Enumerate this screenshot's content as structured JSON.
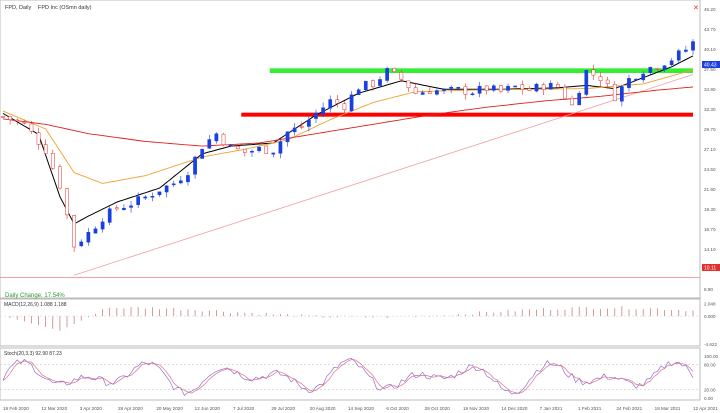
{
  "header": {
    "symbol_title": "FPD, Daily",
    "symbol_desc": "FPD Inc (OSmn daily)"
  },
  "panels": {
    "daily_change_label": "Daily Change: 17.54%",
    "macd_label": "MACD(12,26,9) 1.088 1.188",
    "stoch_label": "Stoch(20,3,3) 92.90 87.23",
    "last_price": "40.43",
    "horizontal_level": "10.11"
  },
  "colors": {
    "up": "#1a3fe0",
    "down": "#e03030",
    "ma_black": "#000000",
    "ma_orange": "#f0a030",
    "ma_red": "#e02020",
    "resistance_band": "#33ee33",
    "support_band": "#ff0000",
    "trendline": "#f0a0a0",
    "level_line": "#f08080",
    "stoch_k": "#9070d8",
    "stoch_d": "#e07080",
    "macd_hist": "#c07070"
  },
  "chart_data": [
    {
      "type": "line",
      "panel": "price",
      "ylim": [
        8.5,
        44.5
      ],
      "yticks": [
        "45.20",
        "43.70",
        "40.10",
        "37.50",
        "34.90",
        "32.30",
        "29.70",
        "27.10",
        "24.50",
        "21.90",
        "19.30",
        "16.70",
        "14.10",
        "11.50",
        "8.90"
      ],
      "xticks": [
        "19 Feb 2020",
        "12 Mar 2020",
        "3 Apr 2020",
        "28 Apr 2020",
        "20 May 2020",
        "12 Jun 2020",
        "7 Jul 2020",
        "29 Jul 2020",
        "20 Aug 2020",
        "14 Sep 2020",
        "6 Oct 2020",
        "28 Oct 2020",
        "19 Nov 2020",
        "14 Dec 2020",
        "7 Jan 2021",
        "1 Feb 2021",
        "24 Feb 2021",
        "18 Mar 2021",
        "12 Apr 2021"
      ],
      "price_path": [
        [
          0,
          30.8
        ],
        [
          3,
          29.8
        ],
        [
          6,
          26.5
        ],
        [
          8,
          22.0
        ],
        [
          10,
          14.2
        ],
        [
          12,
          15.8
        ],
        [
          14,
          17.8
        ],
        [
          16,
          19.0
        ],
        [
          18,
          19.6
        ],
        [
          20,
          20.4
        ],
        [
          22,
          21.4
        ],
        [
          24,
          22.2
        ],
        [
          26,
          23.8
        ],
        [
          28,
          27.0
        ],
        [
          30,
          28.6
        ],
        [
          32,
          26.8
        ],
        [
          34,
          26.2
        ],
        [
          36,
          26.6
        ],
        [
          38,
          26.5
        ],
        [
          40,
          28.8
        ],
        [
          42,
          29.5
        ],
        [
          44,
          31.2
        ],
        [
          46,
          32.8
        ],
        [
          48,
          32.2
        ],
        [
          50,
          34.6
        ],
        [
          52,
          35.0
        ],
        [
          54,
          36.6
        ],
        [
          56,
          35.6
        ],
        [
          58,
          33.8
        ],
        [
          60,
          34.2
        ],
        [
          62,
          34.0
        ],
        [
          64,
          34.2
        ],
        [
          66,
          34.0
        ],
        [
          68,
          34.4
        ],
        [
          70,
          34.0
        ],
        [
          72,
          34.6
        ],
        [
          74,
          34.2
        ],
        [
          76,
          34.8
        ],
        [
          78,
          34.6
        ],
        [
          80,
          32.2
        ],
        [
          82,
          36.6
        ],
        [
          84,
          35.8
        ],
        [
          86,
          33.4
        ],
        [
          88,
          35.6
        ],
        [
          90,
          36.8
        ],
        [
          92,
          37.4
        ],
        [
          94,
          38.2
        ],
        [
          96,
          39.4
        ],
        [
          97,
          40.3
        ]
      ],
      "series": [
        {
          "name": "",
          "color": "#000000",
          "values": [
            [
              0,
              31.2
            ],
            [
              5,
              28.5
            ],
            [
              8,
              20.5
            ],
            [
              10,
              17.0
            ],
            [
              12,
              18.0
            ],
            [
              16,
              19.8
            ],
            [
              22,
              21.6
            ],
            [
              28,
              26.0
            ],
            [
              32,
              27.0
            ],
            [
              38,
              27.4
            ],
            [
              44,
              31.0
            ],
            [
              50,
              33.8
            ],
            [
              56,
              35.4
            ],
            [
              62,
              34.3
            ],
            [
              70,
              34.3
            ],
            [
              78,
              34.5
            ],
            [
              82,
              34.8
            ],
            [
              86,
              34.4
            ],
            [
              90,
              35.8
            ],
            [
              94,
              37.2
            ],
            [
              97,
              38.6
            ]
          ]
        },
        {
          "name": "",
          "color": "#f0a030",
          "values": [
            [
              0,
              31.5
            ],
            [
              6,
              29.2
            ],
            [
              10,
              23.6
            ],
            [
              14,
              22.2
            ],
            [
              20,
              23.2
            ],
            [
              28,
              25.6
            ],
            [
              34,
              26.6
            ],
            [
              40,
              27.8
            ],
            [
              46,
              30.4
            ],
            [
              52,
              32.6
            ],
            [
              58,
              34.0
            ],
            [
              66,
              34.2
            ],
            [
              74,
              34.3
            ],
            [
              82,
              34.4
            ],
            [
              90,
              35.0
            ],
            [
              97,
              36.8
            ]
          ]
        },
        {
          "name": "",
          "color": "#e02020",
          "values": [
            [
              0,
              30.5
            ],
            [
              6,
              29.8
            ],
            [
              12,
              28.6
            ],
            [
              20,
              27.6
            ],
            [
              28,
              27.0
            ],
            [
              36,
              27.4
            ],
            [
              44,
              28.6
            ],
            [
              52,
              29.8
            ],
            [
              60,
              31.0
            ],
            [
              68,
              32.0
            ],
            [
              76,
              32.8
            ],
            [
              84,
              33.4
            ],
            [
              92,
              34.2
            ],
            [
              97,
              34.6
            ]
          ]
        }
      ],
      "annotations": {
        "resistance_zone": [
          36.4,
          37.0
        ],
        "support_zone": [
          30.8,
          31.3
        ],
        "trendline_from": [
          10,
          10.4
        ],
        "trendline_to": [
          97,
          36.2
        ],
        "horizontal_line": 10.11
      }
    },
    {
      "type": "bar",
      "panel": "macd",
      "ylim": [
        -4.622,
        2.5
      ],
      "yticks": [
        "2.048",
        "0.000",
        "-4.622"
      ]
    },
    {
      "type": "line",
      "panel": "stoch",
      "ylim": [
        0,
        100
      ],
      "yticks": [
        "100.00",
        "80.00",
        "20.00",
        "0.00"
      ]
    }
  ]
}
